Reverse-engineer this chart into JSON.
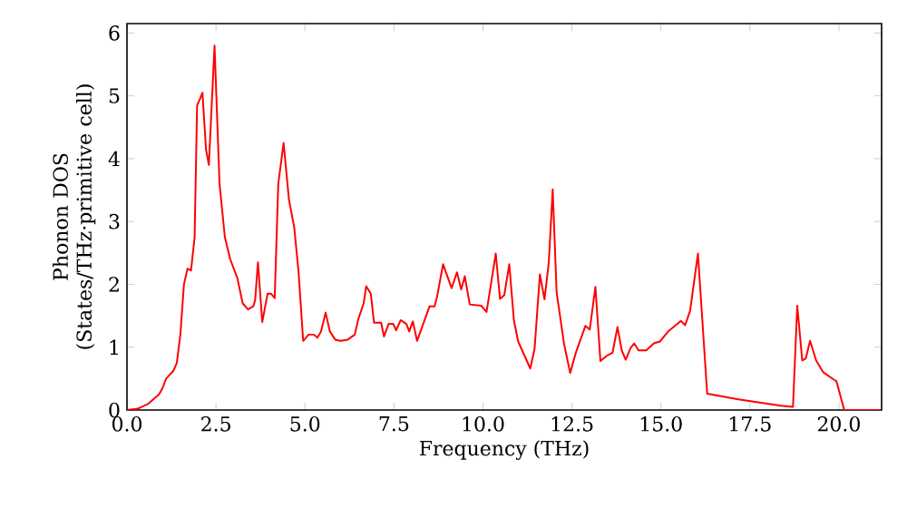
{
  "chart_data": {
    "type": "line",
    "xlabel": "Frequency (THz)",
    "ylabel": "Phonon DOS (States/THz·primitive cell)",
    "xlim": [
      0,
      21.2
    ],
    "ylim": [
      0,
      6.15
    ],
    "xticks": [
      {
        "value": 0,
        "label": "0.0"
      },
      2.5,
      {
        "value": 5,
        "label": "5.0"
      },
      7.5,
      {
        "value": 10,
        "label": "10.0"
      },
      12.5,
      {
        "value": 15,
        "label": "15.0"
      },
      17.5,
      {
        "value": 20,
        "label": "20.0"
      }
    ],
    "yticks": [
      0,
      1,
      2,
      3,
      4,
      5,
      6
    ],
    "series": [
      {
        "color": "#ff0000",
        "x": [
          0,
          0.3,
          0.6,
          0.9,
          1.0,
          1.1,
          1.3,
          1.4,
          1.5,
          1.6,
          1.7,
          1.8,
          1.9,
          1.97,
          2.05,
          2.12,
          2.22,
          2.3,
          2.46,
          2.6,
          2.75,
          2.9,
          3.1,
          3.25,
          3.4,
          3.55,
          3.6,
          3.68,
          3.8,
          3.95,
          4.05,
          4.15,
          4.25,
          4.4,
          4.55,
          4.7,
          4.82,
          4.95,
          5.1,
          5.25,
          5.35,
          5.45,
          5.58,
          5.7,
          5.85,
          6.0,
          6.2,
          6.4,
          6.5,
          6.65,
          6.72,
          6.85,
          6.94,
          7.14,
          7.22,
          7.35,
          7.48,
          7.56,
          7.69,
          7.85,
          7.93,
          8.03,
          8.15,
          8.5,
          8.64,
          8.71,
          8.88,
          9.12,
          9.27,
          9.39,
          9.49,
          9.63,
          9.95,
          10.1,
          10.2,
          10.36,
          10.48,
          10.6,
          10.74,
          10.87,
          10.99,
          11.33,
          11.45,
          11.6,
          11.73,
          11.85,
          11.96,
          12.07,
          12.28,
          12.45,
          12.62,
          12.88,
          13.0,
          13.16,
          13.3,
          13.47,
          13.64,
          13.78,
          13.9,
          14.01,
          14.15,
          14.25,
          14.37,
          14.59,
          14.8,
          14.97,
          15.22,
          15.48,
          15.56,
          15.68,
          15.82,
          16.04,
          16.3,
          17.18,
          18.37,
          18.71,
          18.83,
          18.97,
          19.07,
          19.19,
          19.36,
          19.56,
          19.87,
          19.93,
          20.15,
          21.17
        ],
        "values": [
          0,
          0.02,
          0.1,
          0.25,
          0.35,
          0.5,
          0.62,
          0.75,
          1.2,
          2.0,
          2.25,
          2.22,
          2.75,
          4.85,
          4.95,
          5.05,
          4.15,
          3.9,
          5.8,
          3.6,
          2.75,
          2.4,
          2.1,
          1.7,
          1.6,
          1.65,
          1.75,
          2.35,
          1.4,
          1.85,
          1.85,
          1.78,
          3.6,
          4.25,
          3.35,
          2.9,
          2.2,
          1.1,
          1.2,
          1.2,
          1.15,
          1.25,
          1.55,
          1.25,
          1.12,
          1.1,
          1.12,
          1.2,
          1.45,
          1.7,
          1.97,
          1.85,
          1.39,
          1.39,
          1.17,
          1.37,
          1.37,
          1.27,
          1.43,
          1.37,
          1.25,
          1.41,
          1.1,
          1.65,
          1.65,
          1.8,
          2.32,
          1.94,
          2.19,
          1.92,
          2.13,
          1.68,
          1.66,
          1.56,
          1.91,
          2.49,
          1.77,
          1.83,
          2.32,
          1.43,
          1.09,
          0.66,
          0.97,
          2.16,
          1.76,
          2.35,
          3.51,
          1.87,
          1.05,
          0.59,
          0.93,
          1.34,
          1.28,
          1.96,
          0.78,
          0.86,
          0.91,
          1.32,
          0.95,
          0.8,
          0.99,
          1.06,
          0.95,
          0.95,
          1.06,
          1.09,
          1.26,
          1.38,
          1.42,
          1.35,
          1.58,
          2.49,
          0.26,
          0.17,
          0.07,
          0.05,
          1.66,
          0.79,
          0.82,
          1.1,
          0.79,
          0.6,
          0.48,
          0.46,
          0,
          0
        ]
      }
    ]
  }
}
